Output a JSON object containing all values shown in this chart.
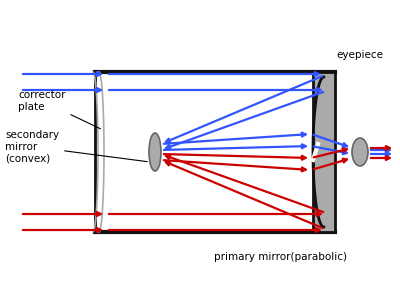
{
  "bg_color": "#ffffff",
  "blue_color": "#3355ff",
  "red_color": "#cc0000",
  "arrow_lw": 1.6,
  "tube_color": "#111111",
  "tube_lw": 2.0,
  "label_corrector": "corrector\nplate",
  "label_secondary": "secondary\nmirror\n(convex)",
  "label_primary": "primary mirror(parabolic)",
  "label_eyepiece": "eyepiece",
  "fs": 7.5
}
